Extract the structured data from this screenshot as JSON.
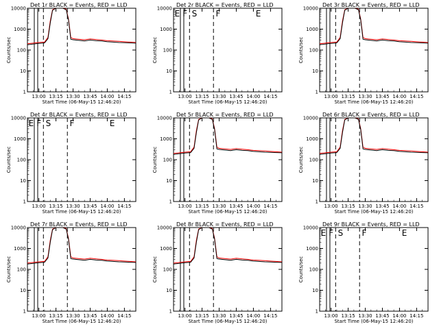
{
  "chart_data": {
    "type": "line",
    "x_ticks": [
      "13:00",
      "13:15",
      "13:30",
      "13:45",
      "14:00",
      "14:15"
    ],
    "y_ticks": [
      "1",
      "10",
      "100",
      "1000",
      "10000"
    ],
    "ylim": [
      1,
      10000
    ],
    "yscale": "log",
    "xlim": [
      "12:50",
      "14:25"
    ],
    "colors": {
      "events": "#000000",
      "lld": "#ff0000"
    },
    "panels": [
      {
        "title": "Det 1r BLACK = Events, RED = LLD",
        "xlabel": "Start Time (06-May-15 12:46:20)",
        "ylabel": "Counts/sec",
        "has_data": true,
        "lines": [
          "12:56",
          "12:59",
          "13:04",
          "13:25",
          "14:25"
        ],
        "series": [
          {
            "x": [
              "12:50",
              "13:00",
              "13:05",
              "13:08",
              "13:10",
              "13:12",
              "13:15",
              "13:18",
              "13:21",
              "13:24",
              "13:26",
              "13:28",
              "13:30",
              "13:35",
              "13:40",
              "13:45",
              "13:50",
              "13:55",
              "14:00",
              "14:05",
              "14:10",
              "14:15",
              "14:20",
              "14:25"
            ],
            "values": [
              200,
              230,
              240,
              400,
              2500,
              8500,
              13000,
              13000,
              12000,
              9000,
              3000,
              400,
              350,
              330,
              310,
              340,
              320,
              300,
              280,
              270,
              260,
              250,
              240,
              230
            ]
          },
          {
            "x": [
              "12:50",
              "13:00",
              "13:05",
              "13:08",
              "13:10",
              "13:12",
              "13:15",
              "13:18",
              "13:21",
              "13:24",
              "13:26",
              "13:28",
              "13:30",
              "13:35",
              "13:40",
              "13:45",
              "13:50",
              "13:55",
              "14:00",
              "14:05",
              "14:10",
              "14:15",
              "14:20",
              "14:25"
            ],
            "values": [
              180,
              210,
              220,
              350,
              2000,
              8000,
              12000,
              12000,
              11000,
              8500,
              2700,
              330,
              310,
              290,
              270,
              300,
              280,
              270,
              250,
              240,
              230,
              225,
              220,
              215
            ]
          }
        ]
      },
      {
        "title": "Det 2r BLACK = Events, RED = LLD",
        "xlabel": "Start Time (06-May-15 12:46:20)",
        "ylabel": "Counts/sec",
        "has_data": false,
        "lines": [
          "12:56",
          "12:59",
          "13:04",
          "13:25",
          "14:25"
        ],
        "flags": [
          {
            "x": "12:51",
            "text": "E"
          },
          {
            "x": "12:58",
            "text": "F"
          },
          {
            "x": "13:06",
            "text": "S"
          },
          {
            "x": "13:27",
            "text": "F"
          },
          {
            "x": "14:02",
            "text": "E"
          }
        ]
      },
      {
        "title": "Det 3r BLACK = Events, RED = LLD",
        "xlabel": "Start Time (06-May-15 12:46:20)",
        "ylabel": "Counts/sec",
        "has_data": true,
        "lines": [
          "12:56",
          "12:59",
          "13:04",
          "13:25",
          "14:25"
        ],
        "series": [
          {
            "x": [
              "12:50",
              "13:00",
              "13:05",
              "13:08",
              "13:10",
              "13:12",
              "13:15",
              "13:18",
              "13:21",
              "13:24",
              "13:26",
              "13:28",
              "13:30",
              "13:35",
              "13:40",
              "13:45",
              "13:50",
              "13:55",
              "14:00",
              "14:05",
              "14:10",
              "14:15",
              "14:20",
              "14:25"
            ],
            "values": [
              200,
              230,
              240,
              400,
              2500,
              8500,
              13000,
              13000,
              12000,
              9000,
              3000,
              400,
              350,
              330,
              310,
              340,
              320,
              300,
              280,
              270,
              260,
              250,
              240,
              230
            ]
          },
          {
            "x": [
              "12:50",
              "13:00",
              "13:05",
              "13:08",
              "13:10",
              "13:12",
              "13:15",
              "13:18",
              "13:21",
              "13:24",
              "13:26",
              "13:28",
              "13:30",
              "13:35",
              "13:40",
              "13:45",
              "13:50",
              "13:55",
              "14:00",
              "14:05",
              "14:10",
              "14:15",
              "14:20",
              "14:25"
            ],
            "values": [
              180,
              210,
              220,
              350,
              2000,
              8000,
              12000,
              12000,
              11000,
              8500,
              2700,
              330,
              310,
              290,
              270,
              300,
              280,
              270,
              250,
              240,
              230,
              225,
              220,
              215
            ]
          }
        ]
      },
      {
        "title": "Det 4r BLACK = Events, RED = LLD",
        "xlabel": "Start Time (06-May-15 12:46:20)",
        "ylabel": "Counts/sec",
        "has_data": false,
        "lines": [
          "12:56",
          "12:59",
          "13:04",
          "13:25",
          "14:25"
        ],
        "flags": [
          {
            "x": "12:51",
            "text": "E"
          },
          {
            "x": "12:58",
            "text": "F"
          },
          {
            "x": "13:06",
            "text": "S"
          },
          {
            "x": "13:27",
            "text": "F"
          },
          {
            "x": "14:02",
            "text": "E"
          }
        ]
      },
      {
        "title": "Det 5r BLACK = Events, RED = LLD",
        "xlabel": "Start Time (06-May-15 12:46:20)",
        "ylabel": "Counts/sec",
        "has_data": true,
        "lines": [
          "12:56",
          "12:59",
          "13:04",
          "13:25",
          "14:25"
        ],
        "series": [
          {
            "x": [
              "12:50",
              "13:00",
              "13:05",
              "13:08",
              "13:10",
              "13:12",
              "13:15",
              "13:18",
              "13:21",
              "13:24",
              "13:26",
              "13:28",
              "13:30",
              "13:35",
              "13:40",
              "13:45",
              "13:50",
              "13:55",
              "14:00",
              "14:05",
              "14:10",
              "14:15",
              "14:20",
              "14:25"
            ],
            "values": [
              200,
              230,
              240,
              400,
              2500,
              8500,
              13000,
              13000,
              12000,
              9000,
              3000,
              400,
              350,
              330,
              310,
              340,
              320,
              300,
              280,
              270,
              260,
              250,
              240,
              230
            ]
          },
          {
            "x": [
              "12:50",
              "13:00",
              "13:05",
              "13:08",
              "13:10",
              "13:12",
              "13:15",
              "13:18",
              "13:21",
              "13:24",
              "13:26",
              "13:28",
              "13:30",
              "13:35",
              "13:40",
              "13:45",
              "13:50",
              "13:55",
              "14:00",
              "14:05",
              "14:10",
              "14:15",
              "14:20",
              "14:25"
            ],
            "values": [
              180,
              210,
              220,
              350,
              2000,
              8000,
              12000,
              12000,
              11000,
              8500,
              2700,
              330,
              310,
              290,
              270,
              300,
              280,
              270,
              250,
              240,
              230,
              225,
              220,
              215
            ]
          }
        ]
      },
      {
        "title": "Det 6r BLACK = Events, RED = LLD",
        "xlabel": "Start Time (06-May-15 12:46:20)",
        "ylabel": "Counts/sec",
        "has_data": true,
        "lines": [
          "12:56",
          "12:59",
          "13:04",
          "13:25",
          "14:25"
        ],
        "series": [
          {
            "x": [
              "12:50",
              "13:00",
              "13:05",
              "13:08",
              "13:10",
              "13:12",
              "13:15",
              "13:18",
              "13:21",
              "13:24",
              "13:26",
              "13:28",
              "13:30",
              "13:35",
              "13:40",
              "13:45",
              "13:50",
              "13:55",
              "14:00",
              "14:05",
              "14:10",
              "14:15",
              "14:20",
              "14:25"
            ],
            "values": [
              200,
              230,
              240,
              400,
              2500,
              8500,
              13000,
              13000,
              12000,
              9000,
              3000,
              400,
              350,
              330,
              310,
              340,
              320,
              300,
              280,
              270,
              260,
              250,
              240,
              230
            ]
          },
          {
            "x": [
              "12:50",
              "13:00",
              "13:05",
              "13:08",
              "13:10",
              "13:12",
              "13:15",
              "13:18",
              "13:21",
              "13:24",
              "13:26",
              "13:28",
              "13:30",
              "13:35",
              "13:40",
              "13:45",
              "13:50",
              "13:55",
              "14:00",
              "14:05",
              "14:10",
              "14:15",
              "14:20",
              "14:25"
            ],
            "values": [
              180,
              210,
              220,
              350,
              2000,
              8000,
              12000,
              12000,
              11000,
              8500,
              2700,
              330,
              310,
              290,
              270,
              300,
              280,
              270,
              250,
              240,
              230,
              225,
              220,
              215
            ]
          }
        ]
      },
      {
        "title": "Det 7r BLACK = Events, RED = LLD",
        "xlabel": "Start Time (06-May-15 12:46:20)",
        "ylabel": "Counts/sec",
        "has_data": true,
        "lines": [
          "12:56",
          "12:59",
          "13:04",
          "13:25",
          "14:25"
        ],
        "series": [
          {
            "x": [
              "12:50",
              "13:00",
              "13:05",
              "13:08",
              "13:10",
              "13:12",
              "13:15",
              "13:18",
              "13:21",
              "13:24",
              "13:26",
              "13:28",
              "13:30",
              "13:35",
              "13:40",
              "13:45",
              "13:50",
              "13:55",
              "14:00",
              "14:05",
              "14:10",
              "14:15",
              "14:20",
              "14:25"
            ],
            "values": [
              200,
              230,
              240,
              400,
              2500,
              8500,
              13000,
              13000,
              12000,
              9000,
              3000,
              400,
              350,
              330,
              310,
              340,
              320,
              300,
              280,
              270,
              260,
              250,
              240,
              230
            ]
          },
          {
            "x": [
              "12:50",
              "13:00",
              "13:05",
              "13:08",
              "13:10",
              "13:12",
              "13:15",
              "13:18",
              "13:21",
              "13:24",
              "13:26",
              "13:28",
              "13:30",
              "13:35",
              "13:40",
              "13:45",
              "13:50",
              "13:55",
              "14:00",
              "14:05",
              "14:10",
              "14:15",
              "14:20",
              "14:25"
            ],
            "values": [
              180,
              210,
              220,
              350,
              2000,
              8000,
              12000,
              12000,
              11000,
              8500,
              2700,
              330,
              310,
              290,
              270,
              300,
              280,
              270,
              250,
              240,
              230,
              225,
              220,
              215
            ]
          }
        ]
      },
      {
        "title": "Det 8r BLACK = Events, RED = LLD",
        "xlabel": "Start Time (06-May-15 12:46:20)",
        "ylabel": "Counts/sec",
        "has_data": true,
        "lines": [
          "12:56",
          "12:59",
          "13:04",
          "13:25",
          "14:25"
        ],
        "series": [
          {
            "x": [
              "12:50",
              "13:00",
              "13:05",
              "13:08",
              "13:10",
              "13:12",
              "13:15",
              "13:18",
              "13:21",
              "13:24",
              "13:26",
              "13:28",
              "13:30",
              "13:35",
              "13:40",
              "13:45",
              "13:50",
              "13:55",
              "14:00",
              "14:05",
              "14:10",
              "14:15",
              "14:20",
              "14:25"
            ],
            "values": [
              200,
              230,
              240,
              400,
              2500,
              8500,
              13000,
              13000,
              12000,
              9000,
              3000,
              400,
              350,
              330,
              310,
              340,
              320,
              300,
              280,
              270,
              260,
              250,
              240,
              230
            ]
          },
          {
            "x": [
              "12:50",
              "13:00",
              "13:05",
              "13:08",
              "13:10",
              "13:12",
              "13:15",
              "13:18",
              "13:21",
              "13:24",
              "13:26",
              "13:28",
              "13:30",
              "13:35",
              "13:40",
              "13:45",
              "13:50",
              "13:55",
              "14:00",
              "14:05",
              "14:10",
              "14:15",
              "14:20",
              "14:25"
            ],
            "values": [
              180,
              210,
              220,
              350,
              2000,
              8000,
              12000,
              12000,
              11000,
              8500,
              2700,
              330,
              310,
              290,
              270,
              300,
              280,
              270,
              250,
              240,
              230,
              225,
              220,
              215
            ]
          }
        ]
      },
      {
        "title": "Det 9r BLACK = Events, RED = LLD",
        "xlabel": "Start Time (06-May-15 12:46:20)",
        "ylabel": "Counts/sec",
        "has_data": false,
        "lines": [
          "12:56",
          "12:59",
          "13:04",
          "13:25",
          "14:25"
        ],
        "flags": [
          {
            "x": "12:51",
            "text": "E"
          },
          {
            "x": "12:58",
            "text": "F"
          },
          {
            "x": "13:06",
            "text": "S"
          },
          {
            "x": "13:27",
            "text": "F"
          },
          {
            "x": "14:02",
            "text": "E"
          }
        ]
      }
    ]
  }
}
